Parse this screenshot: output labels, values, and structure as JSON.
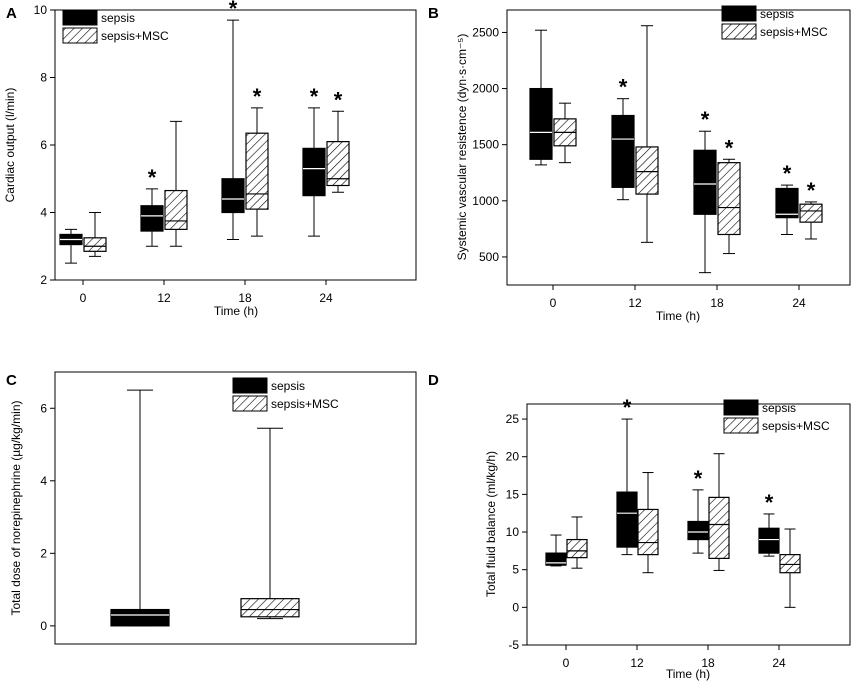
{
  "chart_data": [
    {
      "type": "box",
      "panel_label": "A",
      "title": "",
      "xlabel": "Time (h)",
      "ylabel": "Cardiac output (l/min)",
      "ylim": [
        2,
        10
      ],
      "yticks": [
        2,
        4,
        6,
        8,
        10
      ],
      "categories": [
        "0",
        "12",
        "18",
        "24"
      ],
      "legend": {
        "position": "top-left",
        "entries": [
          "sepsis",
          "sepsis+MSC"
        ]
      },
      "series": [
        {
          "name": "sepsis",
          "fill": "solid",
          "boxes": [
            {
              "min": 2.5,
              "q1": 3.05,
              "median": 3.2,
              "q3": 3.35,
              "max": 3.5
            },
            {
              "min": 3.0,
              "q1": 3.45,
              "median": 3.9,
              "q3": 4.2,
              "max": 4.7
            },
            {
              "min": 3.2,
              "q1": 4.0,
              "median": 4.4,
              "q3": 5.0,
              "max": 9.7
            },
            {
              "min": 3.3,
              "q1": 4.5,
              "median": 5.3,
              "q3": 5.9,
              "max": 7.1
            }
          ],
          "significant": [
            false,
            true,
            true,
            true
          ]
        },
        {
          "name": "sepsis+MSC",
          "fill": "hatched",
          "boxes": [
            {
              "min": 2.7,
              "q1": 2.85,
              "median": 3.0,
              "q3": 3.25,
              "max": 4.0
            },
            {
              "min": 3.0,
              "q1": 3.5,
              "median": 3.75,
              "q3": 4.65,
              "max": 6.7
            },
            {
              "min": 3.3,
              "q1": 4.1,
              "median": 4.55,
              "q3": 6.35,
              "max": 7.1
            },
            {
              "min": 4.6,
              "q1": 4.8,
              "median": 5.0,
              "q3": 6.1,
              "max": 7.0
            }
          ],
          "significant": [
            false,
            false,
            true,
            true
          ]
        }
      ]
    },
    {
      "type": "box",
      "panel_label": "B",
      "title": "",
      "xlabel": "Time (h)",
      "ylabel": "Systemic vascular resistence (dyn·s·cm⁻⁵)",
      "ylim": [
        250,
        2700
      ],
      "yticks": [
        500,
        1000,
        1500,
        2000,
        2500
      ],
      "categories": [
        "0",
        "12",
        "18",
        "24"
      ],
      "legend": {
        "position": "top-right",
        "entries": [
          "sepsis",
          "sepsis+MSC"
        ]
      },
      "series": [
        {
          "name": "sepsis",
          "fill": "solid",
          "boxes": [
            {
              "min": 1320,
              "q1": 1370,
              "median": 1610,
              "q3": 2000,
              "max": 2520
            },
            {
              "min": 1010,
              "q1": 1120,
              "median": 1550,
              "q3": 1760,
              "max": 1910
            },
            {
              "min": 360,
              "q1": 880,
              "median": 1150,
              "q3": 1450,
              "max": 1620
            },
            {
              "min": 700,
              "q1": 850,
              "median": 880,
              "q3": 1110,
              "max": 1140
            }
          ],
          "significant": [
            false,
            true,
            true,
            true
          ]
        },
        {
          "name": "sepsis+MSC",
          "fill": "hatched",
          "boxes": [
            {
              "min": 1340,
              "q1": 1490,
              "median": 1610,
              "q3": 1730,
              "max": 1870
            },
            {
              "min": 630,
              "q1": 1060,
              "median": 1260,
              "q3": 1480,
              "max": 2560
            },
            {
              "min": 530,
              "q1": 700,
              "median": 940,
              "q3": 1340,
              "max": 1370
            },
            {
              "min": 660,
              "q1": 810,
              "median": 910,
              "q3": 970,
              "max": 990
            }
          ],
          "significant": [
            false,
            false,
            true,
            true
          ]
        }
      ]
    },
    {
      "type": "box",
      "panel_label": "C",
      "title": "",
      "xlabel": "",
      "ylabel": "Total dose of norepinephrine (µg/kg/min)",
      "ylim": [
        -0.5,
        7
      ],
      "yticks": [
        0,
        2,
        4,
        6
      ],
      "categories": [
        "sepsis",
        "sepsis+MSC"
      ],
      "legend": {
        "position": "top-right",
        "entries": [
          "sepsis",
          "sepsis+MSC"
        ]
      },
      "series": [
        {
          "name": "sepsis",
          "fill": "solid",
          "boxes": [
            {
              "min": 0.0,
              "q1": 0.0,
              "median": 0.3,
              "q3": 0.45,
              "max": 6.5
            }
          ],
          "significant": [
            false
          ]
        },
        {
          "name": "sepsis+MSC",
          "fill": "hatched",
          "boxes": [
            {
              "min": 0.2,
              "q1": 0.25,
              "median": 0.45,
              "q3": 0.75,
              "max": 5.45
            }
          ],
          "significant": [
            false
          ]
        }
      ]
    },
    {
      "type": "box",
      "panel_label": "D",
      "title": "",
      "xlabel": "Time (h)",
      "ylabel": "Total fluid balance (ml/kg/h)",
      "ylim": [
        -5,
        27
      ],
      "yticks": [
        -5,
        0,
        5,
        10,
        15,
        20,
        25
      ],
      "categories": [
        "0",
        "12",
        "18",
        "24"
      ],
      "legend": {
        "position": "top-right",
        "entries": [
          "sepsis",
          "sepsis+MSC"
        ]
      },
      "series": [
        {
          "name": "sepsis",
          "fill": "solid",
          "boxes": [
            {
              "min": 5.5,
              "q1": 5.6,
              "median": 5.9,
              "q3": 7.2,
              "max": 9.6
            },
            {
              "min": 7.0,
              "q1": 8.0,
              "median": 12.5,
              "q3": 15.3,
              "max": 25.0
            },
            {
              "min": 7.2,
              "q1": 9.0,
              "median": 10.0,
              "q3": 11.4,
              "max": 15.6
            },
            {
              "min": 6.8,
              "q1": 7.2,
              "median": 9.0,
              "q3": 10.5,
              "max": 12.4
            }
          ],
          "significant": [
            false,
            true,
            true,
            true
          ]
        },
        {
          "name": "sepsis+MSC",
          "fill": "hatched",
          "boxes": [
            {
              "min": 5.2,
              "q1": 6.6,
              "median": 7.5,
              "q3": 9.0,
              "max": 12.0
            },
            {
              "min": 4.6,
              "q1": 7.0,
              "median": 8.6,
              "q3": 13.0,
              "max": 17.9
            },
            {
              "min": 4.9,
              "q1": 6.5,
              "median": 11.0,
              "q3": 14.6,
              "max": 20.4
            },
            {
              "min": 0.0,
              "q1": 4.6,
              "median": 5.7,
              "q3": 7.0,
              "max": 10.4
            }
          ],
          "significant": [
            false,
            false,
            false,
            false
          ]
        }
      ]
    }
  ]
}
